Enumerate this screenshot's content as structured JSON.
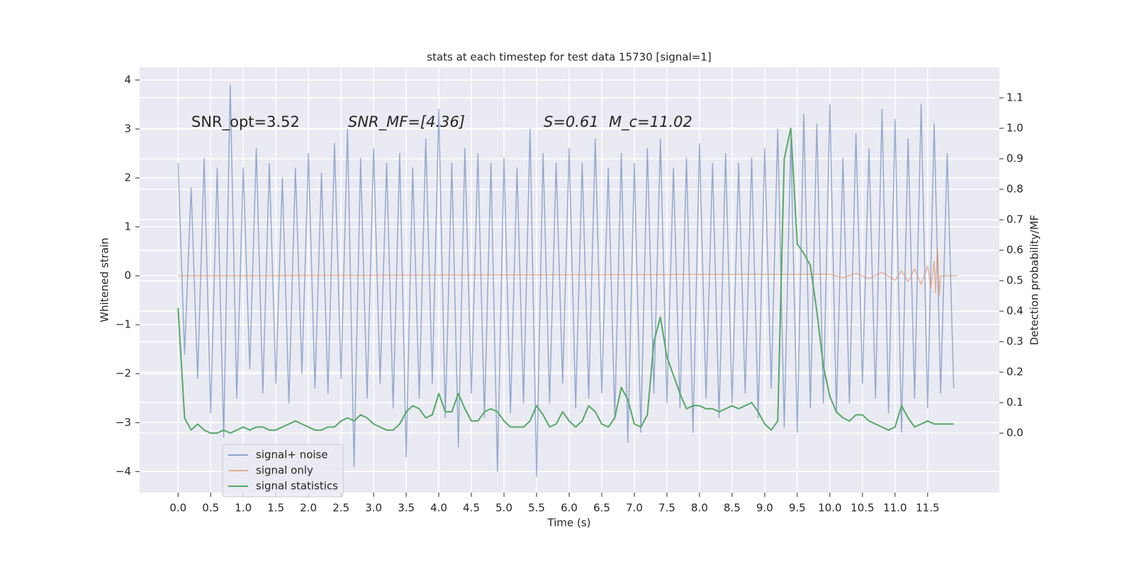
{
  "chart_data": {
    "type": "line",
    "title": "stats at each timestep for test data 15730 [signal=1]",
    "x_label": "Time (s)",
    "y_label": "Whitened strain",
    "y2_label": "Detection probability/MF",
    "annotations": [
      "SNR_opt=3.52",
      "SNR_MF=[4.36]",
      "S=0.61",
      "M_c=11.02"
    ],
    "legend": "lower left",
    "grid": true,
    "xlim": [
      -0.59,
      12.6
    ],
    "ylim": [
      -4.43,
      4.26
    ],
    "y2lim": [
      -0.195,
      1.2
    ],
    "xticks": [
      {
        "value": 0,
        "label": "0.0"
      },
      0.5,
      {
        "value": 1,
        "label": "1.0"
      },
      1.5,
      {
        "value": 2,
        "label": "2.0"
      },
      2.5,
      {
        "value": 3,
        "label": "3.0"
      },
      3.5,
      {
        "value": 4,
        "label": "4.0"
      },
      4.5,
      {
        "value": 5,
        "label": "5.0"
      },
      5.5,
      {
        "value": 6,
        "label": "6.0"
      },
      6.5,
      {
        "value": 7,
        "label": "7.0"
      },
      7.5,
      {
        "value": 8,
        "label": "8.0"
      },
      8.5,
      {
        "value": 9,
        "label": "9.0"
      },
      9.5,
      {
        "value": 10,
        "label": "10.0"
      },
      10.5,
      {
        "value": 11,
        "label": "11.0"
      },
      11.5
    ],
    "yticks": [
      {
        "value": -4,
        "label": "−4"
      },
      {
        "value": -3,
        "label": "−3"
      },
      {
        "value": -2,
        "label": "−2"
      },
      {
        "value": -1,
        "label": "−1"
      },
      0,
      1,
      2,
      3,
      4
    ],
    "y2ticks": [
      {
        "value": 0,
        "label": "0.0"
      },
      0.1,
      0.2,
      0.3,
      0.4,
      0.5,
      0.6,
      0.7,
      0.8,
      0.9,
      {
        "value": 1,
        "label": "1.0"
      },
      1.1
    ],
    "series": [
      {
        "name": "signal+ noise",
        "color": "#4c72b0",
        "x": [
          0,
          0.1,
          0.2,
          0.3,
          0.4,
          0.5,
          0.6,
          0.7,
          0.8,
          0.9,
          1,
          1.1,
          1.2,
          1.3,
          1.4,
          1.5,
          1.6,
          1.7,
          1.8,
          1.9,
          2,
          2.1,
          2.2,
          2.3,
          2.4,
          2.5,
          2.6,
          2.7,
          2.8,
          2.9,
          3,
          3.1,
          3.2,
          3.3,
          3.4,
          3.5,
          3.6,
          3.7,
          3.8,
          3.9,
          4,
          4.1,
          4.2,
          4.3,
          4.4,
          4.5,
          4.6,
          4.7,
          4.8,
          4.9,
          5,
          5.1,
          5.2,
          5.3,
          5.4,
          5.5,
          5.6,
          5.7,
          5.8,
          5.9,
          6,
          6.1,
          6.2,
          6.3,
          6.4,
          6.5,
          6.6,
          6.7,
          6.8,
          6.9,
          7,
          7.1,
          7.2,
          7.3,
          7.4,
          7.5,
          7.6,
          7.7,
          7.8,
          7.9,
          8,
          8.1,
          8.2,
          8.3,
          8.4,
          8.5,
          8.6,
          8.7,
          8.8,
          8.9,
          9,
          9.1,
          9.2,
          9.3,
          9.4,
          9.5,
          9.6,
          9.7,
          9.8,
          9.9,
          10,
          10.1,
          10.2,
          10.3,
          10.4,
          10.5,
          10.6,
          10.7,
          10.8,
          10.9,
          11,
          11.1,
          11.2,
          11.3,
          11.4,
          11.5,
          11.6,
          11.7,
          11.8,
          11.9
        ],
        "values": [
          2.3,
          -1.6,
          1.8,
          -2.1,
          2.4,
          -2.8,
          2.2,
          -3.3,
          3.9,
          -2.5,
          2.2,
          -1.9,
          2.6,
          -2.4,
          2.3,
          -2.2,
          2.0,
          -2.6,
          2.2,
          -2.0,
          2.5,
          -2.3,
          2.1,
          -2.4,
          2.7,
          -2.1,
          3.0,
          -3.9,
          2.4,
          -2.5,
          2.6,
          -2.2,
          2.3,
          -2.7,
          2.5,
          -3.7,
          2.2,
          -2.5,
          2.8,
          -2.2,
          3.4,
          -2.9,
          2.3,
          -3.5,
          2.6,
          -2.4,
          2.5,
          -2.9,
          2.3,
          -4.0,
          2.4,
          -2.8,
          2.2,
          -2.6,
          3.0,
          -4.1,
          2.5,
          -2.6,
          2.3,
          -2.2,
          2.6,
          -2.7,
          2.3,
          -2.5,
          2.8,
          -2.4,
          2.2,
          -2.9,
          2.5,
          -3.4,
          2.3,
          -3.2,
          2.6,
          -2.4,
          2.8,
          -2.6,
          2.2,
          -2.7,
          2.4,
          -3.2,
          2.7,
          -2.5,
          2.3,
          -2.9,
          2.5,
          -2.6,
          2.3,
          -2.4,
          2.4,
          -2.9,
          2.6,
          -2.3,
          3.0,
          -3.1,
          2.8,
          -3.2,
          3.3,
          -2.7,
          3.1,
          -2.6,
          3.5,
          -2.8,
          2.4,
          -2.6,
          2.9,
          -2.2,
          2.6,
          -2.5,
          3.4,
          -2.8,
          3.2,
          -3.2,
          2.8,
          -2.5,
          3.5,
          -2.7,
          3.1,
          -2.4,
          2.5,
          -2.3
        ]
      },
      {
        "name": "signal only",
        "color": "#dd8452",
        "x": [
          0,
          10.0,
          10.2,
          10.4,
          10.6,
          10.8,
          11.0,
          11.1,
          11.2,
          11.3,
          11.4,
          11.5,
          11.55,
          11.6,
          11.62,
          11.65,
          11.68,
          11.7,
          11.95
        ],
        "values": [
          0,
          0.03,
          -0.04,
          0.05,
          -0.06,
          0.07,
          -0.09,
          0.1,
          -0.12,
          0.14,
          -0.17,
          0.2,
          -0.24,
          0.3,
          -0.35,
          0.55,
          -0.4,
          0,
          0
        ]
      },
      {
        "name": "signal statistics",
        "color": "#55a868",
        "axis": "y2",
        "x": [
          0,
          0.1,
          0.2,
          0.3,
          0.4,
          0.5,
          0.6,
          0.7,
          0.8,
          0.9,
          1,
          1.1,
          1.2,
          1.3,
          1.4,
          1.5,
          1.6,
          1.7,
          1.8,
          1.9,
          2,
          2.1,
          2.2,
          2.3,
          2.4,
          2.5,
          2.6,
          2.7,
          2.8,
          2.9,
          3,
          3.1,
          3.2,
          3.3,
          3.4,
          3.5,
          3.6,
          3.7,
          3.8,
          3.9,
          4,
          4.1,
          4.2,
          4.3,
          4.4,
          4.5,
          4.6,
          4.7,
          4.8,
          4.9,
          5,
          5.1,
          5.2,
          5.3,
          5.4,
          5.5,
          5.6,
          5.7,
          5.8,
          5.9,
          6,
          6.1,
          6.2,
          6.3,
          6.4,
          6.5,
          6.6,
          6.7,
          6.8,
          6.9,
          7,
          7.1,
          7.2,
          7.3,
          7.4,
          7.5,
          7.6,
          7.7,
          7.8,
          7.9,
          8,
          8.1,
          8.2,
          8.3,
          8.4,
          8.5,
          8.6,
          8.7,
          8.8,
          8.9,
          9,
          9.1,
          9.2,
          9.3,
          9.4,
          9.5,
          9.6,
          9.7,
          9.8,
          9.9,
          10,
          10.1,
          10.2,
          10.3,
          10.4,
          10.5,
          10.6,
          10.7,
          10.8,
          10.9,
          11,
          11.1,
          11.2,
          11.3,
          11.4,
          11.5,
          11.6,
          11.7,
          11.8,
          11.9
        ],
        "values": [
          0.41,
          0.05,
          0.01,
          0.03,
          0.01,
          0,
          0,
          0.01,
          0,
          0.01,
          0.02,
          0.01,
          0.02,
          0.02,
          0.01,
          0.01,
          0.02,
          0.03,
          0.04,
          0.03,
          0.02,
          0.01,
          0.01,
          0.02,
          0.02,
          0.04,
          0.05,
          0.04,
          0.06,
          0.05,
          0.03,
          0.02,
          0.01,
          0.01,
          0.03,
          0.07,
          0.09,
          0.08,
          0.05,
          0.06,
          0.13,
          0.07,
          0.07,
          0.13,
          0.08,
          0.04,
          0.04,
          0.07,
          0.08,
          0.07,
          0.04,
          0.02,
          0.02,
          0.02,
          0.04,
          0.09,
          0.06,
          0.02,
          0.03,
          0.07,
          0.04,
          0.02,
          0.04,
          0.09,
          0.07,
          0.03,
          0.02,
          0.05,
          0.15,
          0.11,
          0.03,
          0.02,
          0.06,
          0.3,
          0.38,
          0.25,
          0.19,
          0.13,
          0.08,
          0.09,
          0.09,
          0.08,
          0.08,
          0.07,
          0.08,
          0.09,
          0.08,
          0.09,
          0.1,
          0.07,
          0.03,
          0.01,
          0.04,
          0.9,
          1.0,
          0.62,
          0.59,
          0.55,
          0.4,
          0.22,
          0.12,
          0.07,
          0.05,
          0.04,
          0.06,
          0.06,
          0.04,
          0.03,
          0.02,
          0.01,
          0.02,
          0.09,
          0.05,
          0.02,
          0.03,
          0.04,
          0.03,
          0.03,
          0.03,
          0.03
        ]
      }
    ]
  }
}
